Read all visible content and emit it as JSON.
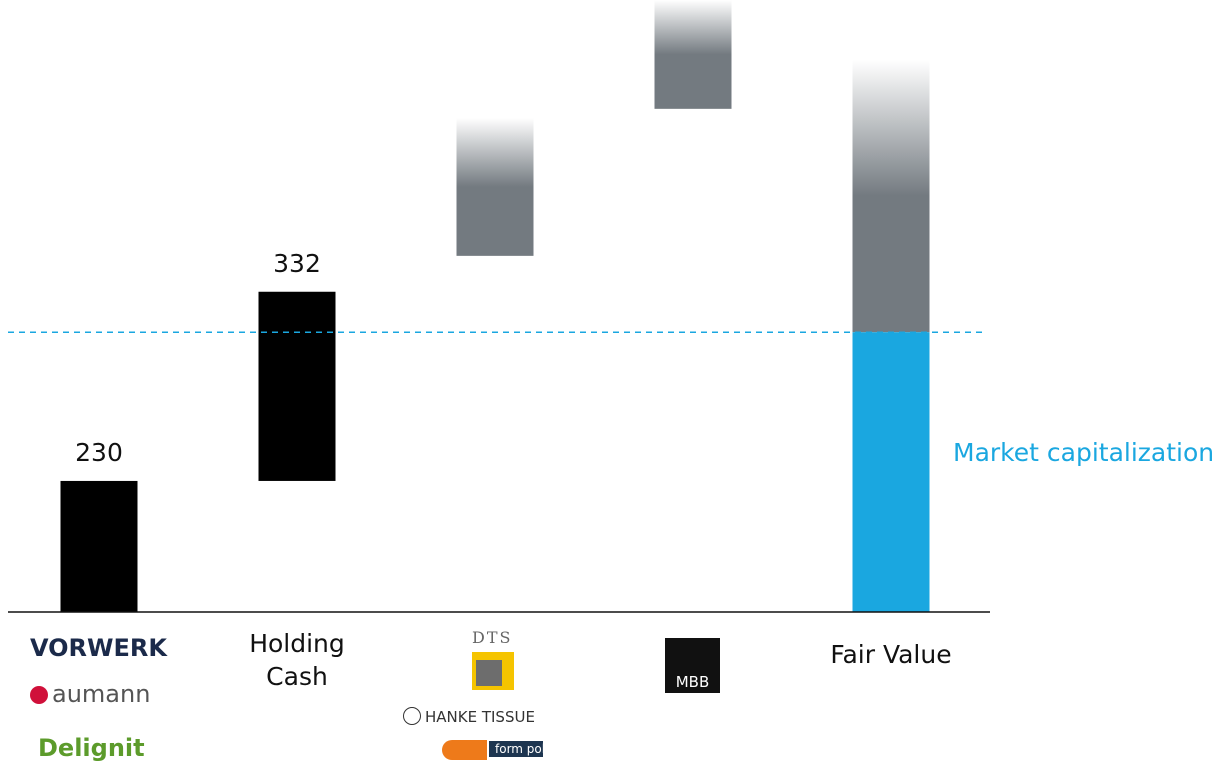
{
  "chart_data": {
    "type": "waterfall",
    "categories": [
      null,
      "Holding Cash",
      null,
      null,
      "Fair Value"
    ],
    "category_logos": [
      [
        "VORWERK",
        "aumann",
        "Delignit"
      ],
      null,
      [
        "DTS",
        "HANKE TISSUE",
        "form polster"
      ],
      [
        "MBB"
      ],
      null
    ],
    "values": [
      230,
      332,
      null,
      null,
      null
    ],
    "value_ranges": [
      null,
      null,
      [
        625,
        867
      ],
      [
        883,
        1074
      ],
      [
        491,
        969
      ]
    ],
    "market_cap": {
      "label": "Market capitalization",
      "value": 491,
      "color": "#1aa7e0"
    },
    "bar_color": "#000000",
    "range_color": "#737a80",
    "ylim": [
      0,
      1074
    ]
  }
}
